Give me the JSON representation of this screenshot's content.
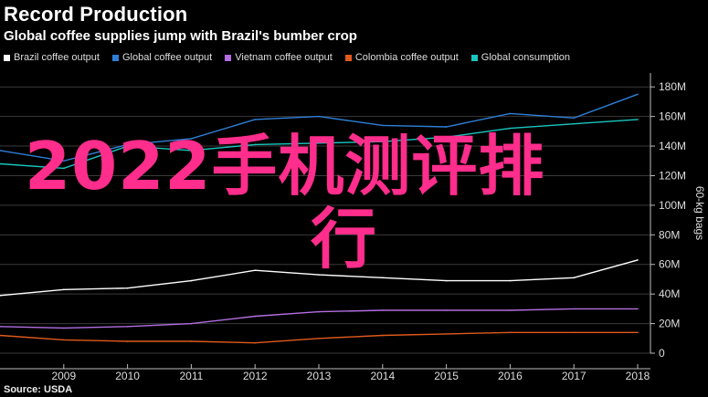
{
  "title": "Record Production",
  "subtitle": "Global coffee supplies jump with Brazil's bumber crop",
  "source": "Source: USDA",
  "overlay_text": [
    "2022手机测评排",
    "行"
  ],
  "overlay_color": "#ff2d8c",
  "chart_data": {
    "type": "line",
    "x": [
      2008,
      2009,
      2010,
      2011,
      2012,
      2013,
      2014,
      2015,
      2016,
      2017,
      2018
    ],
    "xticks": [
      "2009",
      "2010",
      "2011",
      "2012",
      "2013",
      "2014",
      "2015",
      "2016",
      "2017",
      "2018"
    ],
    "ylim": [
      0,
      190
    ],
    "yticks": [
      0,
      20,
      40,
      60,
      80,
      100,
      120,
      140,
      160,
      180
    ],
    "yticklabels": [
      "0",
      "20M",
      "40M",
      "60M",
      "80M",
      "100M",
      "120M",
      "140M",
      "160M",
      "180M"
    ],
    "ylabel": "60-kg bags",
    "axis_position": "right",
    "grid": true,
    "legend_position": "top-left",
    "series": [
      {
        "name": "Brazil coffee output",
        "color": "#ffffff",
        "values": [
          39,
          43,
          44,
          49,
          56,
          53,
          51,
          49,
          49,
          51,
          63
        ]
      },
      {
        "name": "Global coffee output",
        "color": "#2f7fd6",
        "values": [
          137,
          130,
          141,
          145,
          158,
          160,
          154,
          153,
          162,
          159,
          175
        ]
      },
      {
        "name": "Vietnam coffee output",
        "color": "#b36ee0",
        "values": [
          18,
          17,
          18,
          20,
          25,
          28,
          29,
          29,
          29,
          30,
          30
        ]
      },
      {
        "name": "Colombia coffee output",
        "color": "#e05a1c",
        "values": [
          12,
          9,
          8,
          8,
          7,
          10,
          12,
          13,
          14,
          14,
          14
        ]
      },
      {
        "name": "Global consumption",
        "color": "#19c6bf",
        "values": [
          128,
          125,
          140,
          137,
          141,
          142,
          143,
          146,
          152,
          155,
          158
        ]
      }
    ]
  }
}
